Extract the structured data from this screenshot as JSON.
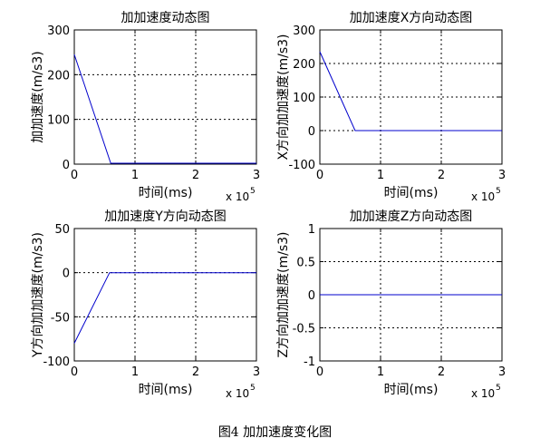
{
  "caption": "图4  加加速度变化图",
  "chart_data": [
    {
      "type": "line",
      "title": "加加速度动态图",
      "xlabel": "时间(ms)",
      "ylabel": "加加速度(m/s3)",
      "x_multiplier": "x 10",
      "x_exponent": "5",
      "xlim": [
        0,
        3
      ],
      "ylim": [
        0,
        300
      ],
      "xticks": [
        0,
        1,
        2,
        3
      ],
      "yticks": [
        0,
        100,
        200,
        300
      ],
      "grid": true,
      "line_color": "#0000cc",
      "series": [
        {
          "x": [
            0,
            0.6,
            1.0,
            1.5,
            2.0,
            2.5,
            3.0
          ],
          "y": [
            245,
            2,
            2,
            2,
            2,
            2,
            2
          ]
        }
      ]
    },
    {
      "type": "line",
      "title": "加加速度X方向动态图",
      "xlabel": "时间(ms)",
      "ylabel": "X方向加加速度(m/s3)",
      "x_multiplier": "x 10",
      "x_exponent": "5",
      "xlim": [
        0,
        3
      ],
      "ylim": [
        -100,
        300
      ],
      "xticks": [
        0,
        1,
        2,
        3
      ],
      "yticks": [
        -100,
        0,
        100,
        200,
        300
      ],
      "grid": true,
      "line_color": "#0000cc",
      "series": [
        {
          "x": [
            0,
            0.58,
            1.0,
            1.5,
            2.0,
            2.5,
            3.0
          ],
          "y": [
            235,
            0,
            0,
            0,
            0,
            0,
            0
          ]
        }
      ]
    },
    {
      "type": "line",
      "title": "加加速度Y方向动态图",
      "xlabel": "时间(ms)",
      "ylabel": "Y方向加加速度(m/s3)",
      "x_multiplier": "x 10",
      "x_exponent": "5",
      "xlim": [
        0,
        3
      ],
      "ylim": [
        -100,
        50
      ],
      "xticks": [
        0,
        1,
        2,
        3
      ],
      "yticks": [
        -100,
        -50,
        0,
        50
      ],
      "grid": true,
      "line_color": "#0000cc",
      "series": [
        {
          "x": [
            0,
            0.58,
            0.8,
            1.0,
            1.4,
            2.0,
            2.8,
            3.0
          ],
          "y": [
            -80,
            0,
            0,
            0,
            0,
            0,
            0,
            0
          ]
        }
      ]
    },
    {
      "type": "line",
      "title": "加加速度Z方向动态图",
      "xlabel": "时间(ms)",
      "ylabel": "Z方向加加速度(m/s3)",
      "x_multiplier": "x 10",
      "x_exponent": "5",
      "xlim": [
        0,
        3
      ],
      "ylim": [
        -1,
        1
      ],
      "xticks": [
        0,
        1,
        2,
        3
      ],
      "yticks": [
        -1,
        -0.5,
        0,
        0.5,
        1
      ],
      "grid": true,
      "line_color": "#0000cc",
      "series": [
        {
          "x": [
            0,
            1,
            2,
            3
          ],
          "y": [
            0,
            0,
            0,
            0
          ]
        }
      ]
    }
  ]
}
